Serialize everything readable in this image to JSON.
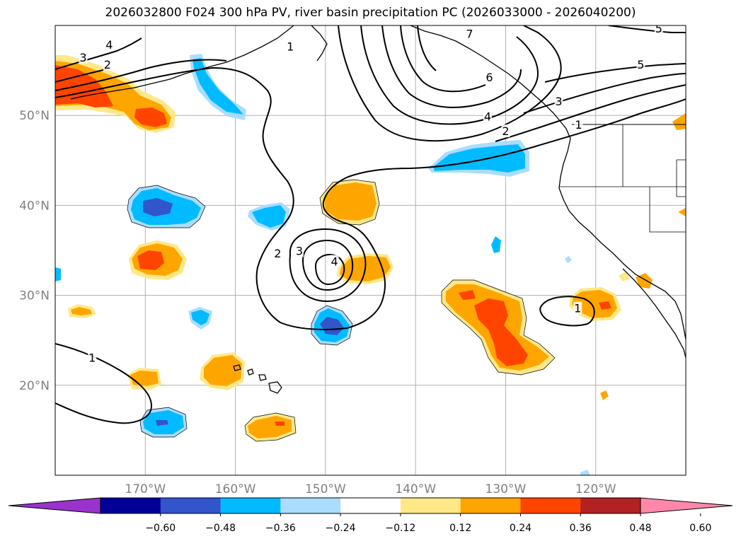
{
  "title": "2026032800 F024 300 hPa PV, river basin precipitation PC (2026033000 - 2026040200)",
  "map": {
    "projection": "equirectangular",
    "lon_range": [
      -180,
      -110
    ],
    "lat_range": [
      10,
      60
    ],
    "lat_ticks": [
      {
        "value": 50,
        "label": "50°N"
      },
      {
        "value": 40,
        "label": "40°N"
      },
      {
        "value": 30,
        "label": "30°N"
      },
      {
        "value": 20,
        "label": "20°N"
      }
    ],
    "lon_ticks": [
      {
        "value": -170,
        "label": "170°W"
      },
      {
        "value": -160,
        "label": "160°W"
      },
      {
        "value": -150,
        "label": "150°W"
      },
      {
        "value": -140,
        "label": "140°W"
      },
      {
        "value": -130,
        "label": "130°W"
      },
      {
        "value": -120,
        "label": "120°W"
      }
    ],
    "grid": true
  },
  "colorbar": {
    "extend": "both",
    "under_color": "#9933cc",
    "over_color": "#ff88aa",
    "colors": [
      "#000099",
      "#3355cc",
      "#00bbff",
      "#aaddff",
      "#ffffff",
      "#ffe888",
      "#ffa500",
      "#ff4400",
      "#b22222"
    ],
    "labels": [
      "−0.60",
      "−0.48",
      "−0.36",
      "−0.24",
      "−0.12",
      "0.12",
      "0.24",
      "0.36",
      "0.48",
      "0.60"
    ]
  },
  "pv_contour_labels": [
    {
      "text": "4",
      "lon": -174.0,
      "lat": 57.8
    },
    {
      "text": "3",
      "lon": -176.9,
      "lat": 56.4
    },
    {
      "text": "2",
      "lon": -174.2,
      "lat": 55.6
    },
    {
      "text": "1",
      "lon": -153.9,
      "lat": 57.6
    },
    {
      "text": "7",
      "lon": -134.0,
      "lat": 59.0
    },
    {
      "text": "5",
      "lon": -113.0,
      "lat": 59.6
    },
    {
      "text": "5",
      "lon": -115.0,
      "lat": 55.6
    },
    {
      "text": "6",
      "lon": -131.8,
      "lat": 54.2
    },
    {
      "text": "4",
      "lon": -132.0,
      "lat": 49.8
    },
    {
      "text": "3",
      "lon": -124.1,
      "lat": 51.5
    },
    {
      "text": "2",
      "lon": -130.0,
      "lat": 48.2
    },
    {
      "text": "1",
      "lon": -121.9,
      "lat": 48.9
    },
    {
      "text": "2",
      "lon": -155.3,
      "lat": 34.6
    },
    {
      "text": "3",
      "lon": -152.9,
      "lat": 34.9
    },
    {
      "text": "4",
      "lon": -149.0,
      "lat": 33.7
    },
    {
      "text": "1",
      "lon": -122.0,
      "lat": 28.5
    },
    {
      "text": "1",
      "lon": -175.9,
      "lat": 23.0
    }
  ]
}
